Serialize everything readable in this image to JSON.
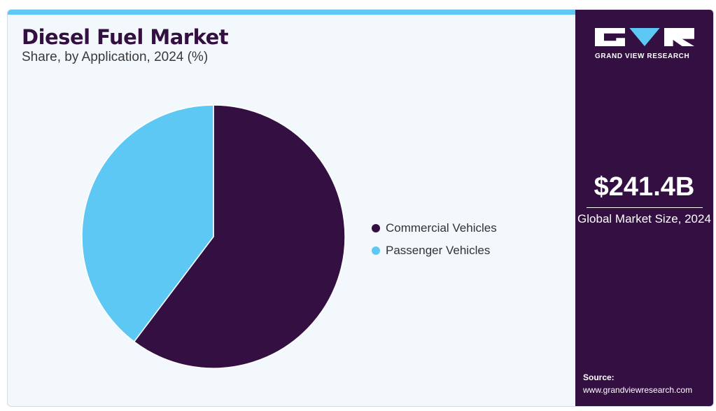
{
  "header": {
    "title": "Diesel Fuel Market",
    "subtitle": "Share, by Application, 2024 (%)"
  },
  "colors": {
    "primary": "#341042",
    "accent": "#5ec8f5",
    "background": "#f3f8fc"
  },
  "chart_data": {
    "type": "pie",
    "title": "Diesel Fuel Market",
    "subtitle": "Share, by Application, 2024 (%)",
    "legend_position": "right",
    "categories": [
      "Commercial Vehicles",
      "Passenger Vehicles"
    ],
    "values": [
      60.3,
      39.7
    ],
    "colors": [
      "#341042",
      "#5ec8f5"
    ]
  },
  "legend": {
    "items": [
      {
        "label": "Commercial Vehicles",
        "color": "#341042"
      },
      {
        "label": "Passenger Vehicles",
        "color": "#5ec8f5"
      }
    ]
  },
  "sidebar": {
    "logo_text": "GRAND VIEW RESEARCH",
    "market_value": "$241.4B",
    "market_label": "Global Market Size, 2024",
    "source_label": "Source:",
    "source_url": "www.grandviewresearch.com"
  }
}
